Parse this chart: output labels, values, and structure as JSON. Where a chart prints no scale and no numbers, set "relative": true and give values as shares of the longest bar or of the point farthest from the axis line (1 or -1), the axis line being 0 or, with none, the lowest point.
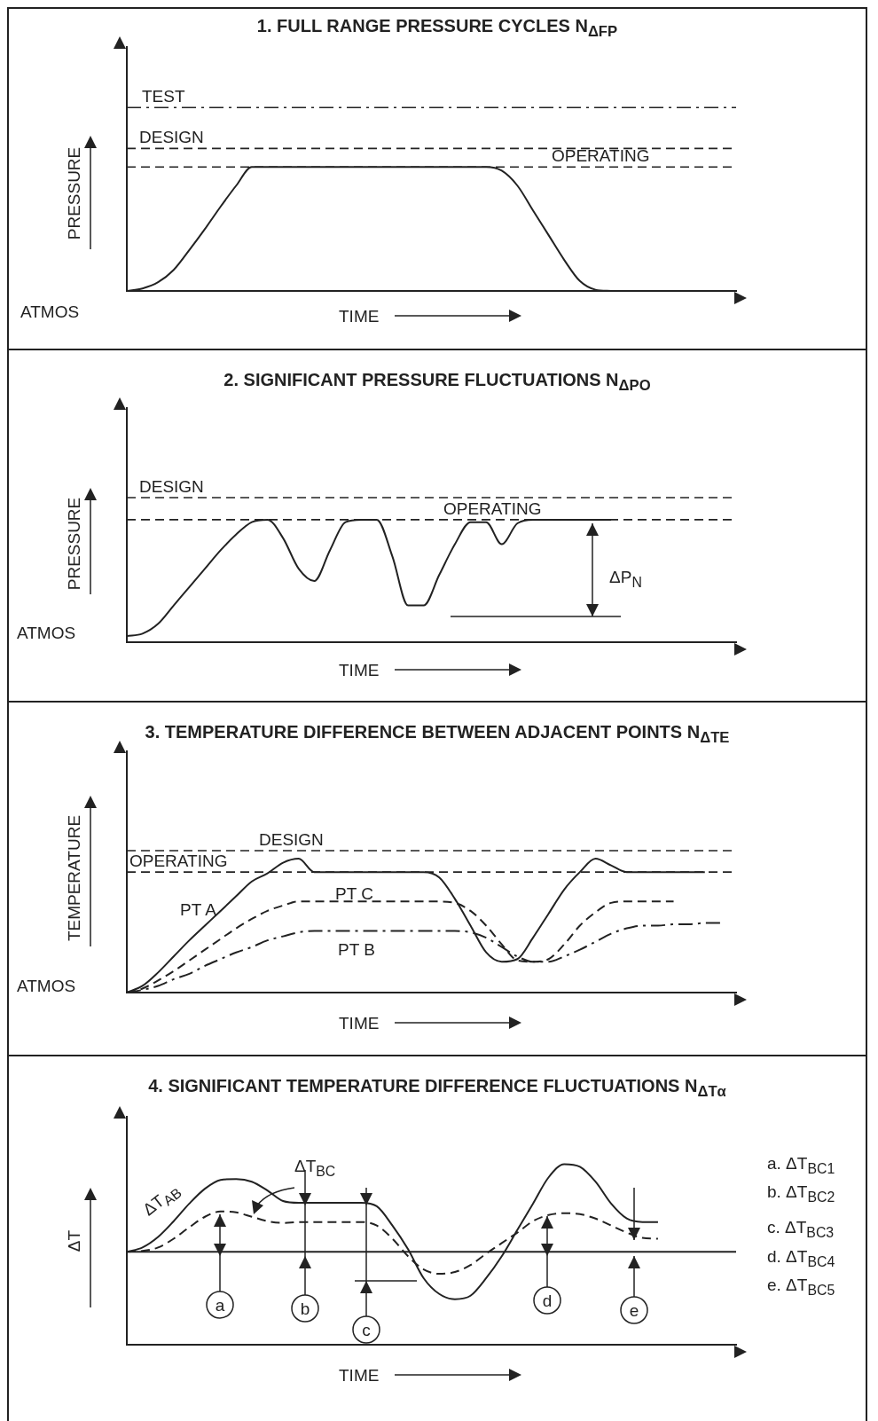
{
  "chart_data": [
    {
      "type": "line",
      "title": "1. FULL RANGE PRESSURE CYCLES N$_{ΔFP}$",
      "xlabel": "TIME",
      "ylabel": "PRESSURE",
      "relative": true,
      "categories": [
        null,
        null,
        null,
        null,
        null,
        null,
        null,
        null,
        null,
        null,
        null,
        null,
        null,
        null,
        null,
        null,
        null,
        null,
        null,
        null,
        null,
        null,
        null,
        null,
        null,
        null,
        null,
        null,
        null,
        null,
        null,
        null,
        null,
        null,
        null,
        null,
        null,
        null,
        null,
        null
      ],
      "series": [
        {
          "color": "#222222",
          "line_style": "solid",
          "values": [
            0,
            0.02,
            0.07,
            0.17,
            0.33,
            0.5,
            0.68,
            0.85,
            1,
            1,
            1,
            1,
            1,
            1,
            1,
            1,
            1,
            1,
            1,
            1,
            1,
            1,
            1,
            1,
            0.97,
            0.85,
            0.65,
            0.45,
            0.25,
            0.08,
            0.01,
            0,
            null,
            null,
            null,
            null,
            null,
            null,
            null,
            null
          ]
        }
      ],
      "ref_lines": [
        {
          "axis": "y",
          "value": 1.48,
          "label": "TEST",
          "line_style": "dashdot",
          "color": "#222222"
        },
        {
          "axis": "y",
          "value": 1.15,
          "label": "DESIGN",
          "line_style": "dashed",
          "color": "#222222"
        },
        {
          "axis": "y",
          "value": 1,
          "label": "OPERATING",
          "line_style": "dashed",
          "color": "#222222"
        }
      ],
      "annotations": [
        "ATMOS"
      ]
    },
    {
      "type": "line",
      "title": "2. SIGNIFICANT PRESSURE FLUCTUATIONS N$_{ΔPO}$",
      "xlabel": "TIME",
      "ylabel": "PRESSURE",
      "relative": true,
      "categories": [
        null,
        null,
        null,
        null,
        null,
        null,
        null,
        null,
        null,
        null,
        null,
        null,
        null,
        null,
        null,
        null,
        null,
        null,
        null,
        null,
        null,
        null,
        null,
        null,
        null,
        null,
        null,
        null,
        null,
        null,
        null,
        null,
        null,
        null,
        null,
        null,
        null,
        null,
        null,
        null
      ],
      "series": [
        {
          "color": "#222222",
          "line_style": "solid",
          "values": [
            0.05,
            0.07,
            0.15,
            0.3,
            0.45,
            0.6,
            0.75,
            0.88,
            0.98,
            1,
            0.85,
            0.6,
            0.5,
            0.75,
            0.98,
            1,
            1,
            0.7,
            0.3,
            0.3,
            0.55,
            0.8,
            0.98,
            0.98,
            0.8,
            0.97,
            1,
            1,
            1,
            1,
            1,
            1,
            null,
            null,
            null,
            null,
            null,
            null,
            null,
            null
          ]
        }
      ],
      "ref_lines": [
        {
          "axis": "y",
          "value": 1.18,
          "label": "DESIGN",
          "line_style": "dashed",
          "color": "#222222"
        },
        {
          "axis": "y",
          "value": 1,
          "label": "OPERATING",
          "line_style": "dashed",
          "color": "#222222"
        }
      ],
      "annotations": [
        "ATMOS",
        "ΔP$_{N}$"
      ]
    },
    {
      "type": "line",
      "title": "3. TEMPERATURE DIFFERENCE BETWEEN ADJACENT POINTS N$_{ΔTE}$",
      "xlabel": "TIME",
      "ylabel": "TEMPERATURE",
      "relative": true,
      "categories": [
        null,
        null,
        null,
        null,
        null,
        null,
        null,
        null,
        null,
        null,
        null,
        null,
        null,
        null,
        null,
        null,
        null,
        null,
        null,
        null,
        null,
        null,
        null,
        null,
        null,
        null,
        null,
        null,
        null,
        null,
        null,
        null,
        null,
        null,
        null,
        null,
        null,
        null,
        null,
        null
      ],
      "series": [
        {
          "name": "PT A",
          "color": "#222222",
          "line_style": "solid",
          "values": [
            0,
            0.05,
            0.15,
            0.27,
            0.39,
            0.5,
            0.61,
            0.72,
            0.83,
            0.89,
            0.97,
            1,
            0.9,
            0.9,
            0.9,
            0.9,
            0.9,
            0.9,
            0.9,
            0.9,
            0.86,
            0.7,
            0.5,
            0.3,
            0.23,
            0.25,
            0.41,
            0.59,
            0.77,
            0.9,
            1,
            0.95,
            0.9,
            0.9,
            0.9,
            0.9,
            0.9,
            0.9,
            null,
            null
          ]
        },
        {
          "name": "PT C",
          "color": "#222222",
          "line_style": "dashed",
          "values": [
            0,
            0.03,
            0.09,
            0.16,
            0.24,
            0.32,
            0.4,
            0.48,
            0.55,
            0.61,
            0.65,
            0.68,
            0.68,
            0.68,
            0.68,
            0.68,
            0.68,
            0.68,
            0.68,
            0.68,
            0.68,
            0.67,
            0.61,
            0.5,
            0.36,
            0.24,
            0.23,
            0.25,
            0.36,
            0.5,
            0.6,
            0.67,
            0.68,
            0.68,
            0.68,
            0.68,
            null,
            null,
            null,
            null
          ]
        },
        {
          "name": "PT B",
          "color": "#222222",
          "line_style": "dashdot",
          "values": [
            0,
            0.02,
            0.05,
            0.1,
            0.14,
            0.2,
            0.25,
            0.3,
            0.34,
            0.39,
            0.42,
            0.45,
            0.46,
            0.46,
            0.46,
            0.46,
            0.46,
            0.46,
            0.46,
            0.46,
            0.46,
            0.46,
            0.45,
            0.41,
            0.34,
            0.27,
            0.23,
            0.23,
            0.27,
            0.32,
            0.38,
            0.44,
            0.48,
            0.5,
            0.5,
            0.51,
            0.51,
            0.52,
            0.52,
            null
          ]
        }
      ],
      "ref_lines": [
        {
          "axis": "y",
          "value": 1.06,
          "label": "DESIGN",
          "line_style": "dashed",
          "color": "#222222"
        },
        {
          "axis": "y",
          "value": 0.9,
          "label": "OPERATING",
          "line_style": "dashed",
          "color": "#222222"
        }
      ],
      "annotations": [
        "ATMOS"
      ]
    },
    {
      "type": "line",
      "title": "4. SIGNIFICANT TEMPERATURE DIFFERENCE FLUCTUATIONS N$_{ΔTα}$",
      "xlabel": "TIME",
      "ylabel": "ΔT",
      "relative": true,
      "categories": [
        null,
        null,
        null,
        null,
        null,
        null,
        null,
        null,
        null,
        null,
        null,
        null,
        null,
        null,
        null,
        null,
        null,
        null,
        null,
        null,
        null,
        null,
        null,
        null,
        null,
        null,
        null,
        null,
        null,
        null,
        null,
        null,
        null,
        null,
        null,
        null,
        null,
        null,
        null,
        null
      ],
      "series": [
        {
          "name": "ΔT$_{AB}$",
          "color": "#222222",
          "line_style": "solid",
          "values": [
            0,
            0.05,
            0.17,
            0.35,
            0.55,
            0.72,
            0.82,
            0.83,
            0.8,
            0.7,
            0.58,
            0.56,
            0.56,
            0.56,
            0.56,
            0.56,
            0.52,
            0.3,
            0.03,
            -0.3,
            -0.48,
            -0.54,
            -0.5,
            -0.3,
            -0.05,
            0.25,
            0.55,
            0.85,
            1,
            0.97,
            0.8,
            0.55,
            0.38,
            0.34,
            0.34,
            null,
            null,
            null,
            null,
            null
          ]
        },
        {
          "name": "ΔT$_{BC}$",
          "color": "#222222",
          "line_style": "dashed",
          "values": [
            0,
            0.01,
            0.05,
            0.15,
            0.28,
            0.4,
            0.46,
            0.45,
            0.4,
            0.35,
            0.33,
            0.34,
            0.34,
            0.34,
            0.34,
            0.34,
            0.3,
            0.15,
            -0.05,
            -0.2,
            -0.25,
            -0.23,
            -0.15,
            -0.02,
            0.1,
            0.22,
            0.35,
            0.42,
            0.44,
            0.43,
            0.38,
            0.3,
            0.22,
            0.16,
            0.15,
            null,
            null,
            null,
            null,
            null
          ]
        }
      ],
      "ref_lines": [
        {
          "axis": "y",
          "value": 0,
          "line_style": "solid",
          "color": "#222222"
        }
      ],
      "annotations": [
        "a",
        "b",
        "c",
        "d",
        "e",
        "a. ΔT$_{BC1}$",
        "b. ΔT$_{BC2}$",
        "c. ΔT$_{BC3}$",
        "d. ΔT$_{BC4}$",
        "e. ΔT$_{BC5}$"
      ]
    }
  ]
}
